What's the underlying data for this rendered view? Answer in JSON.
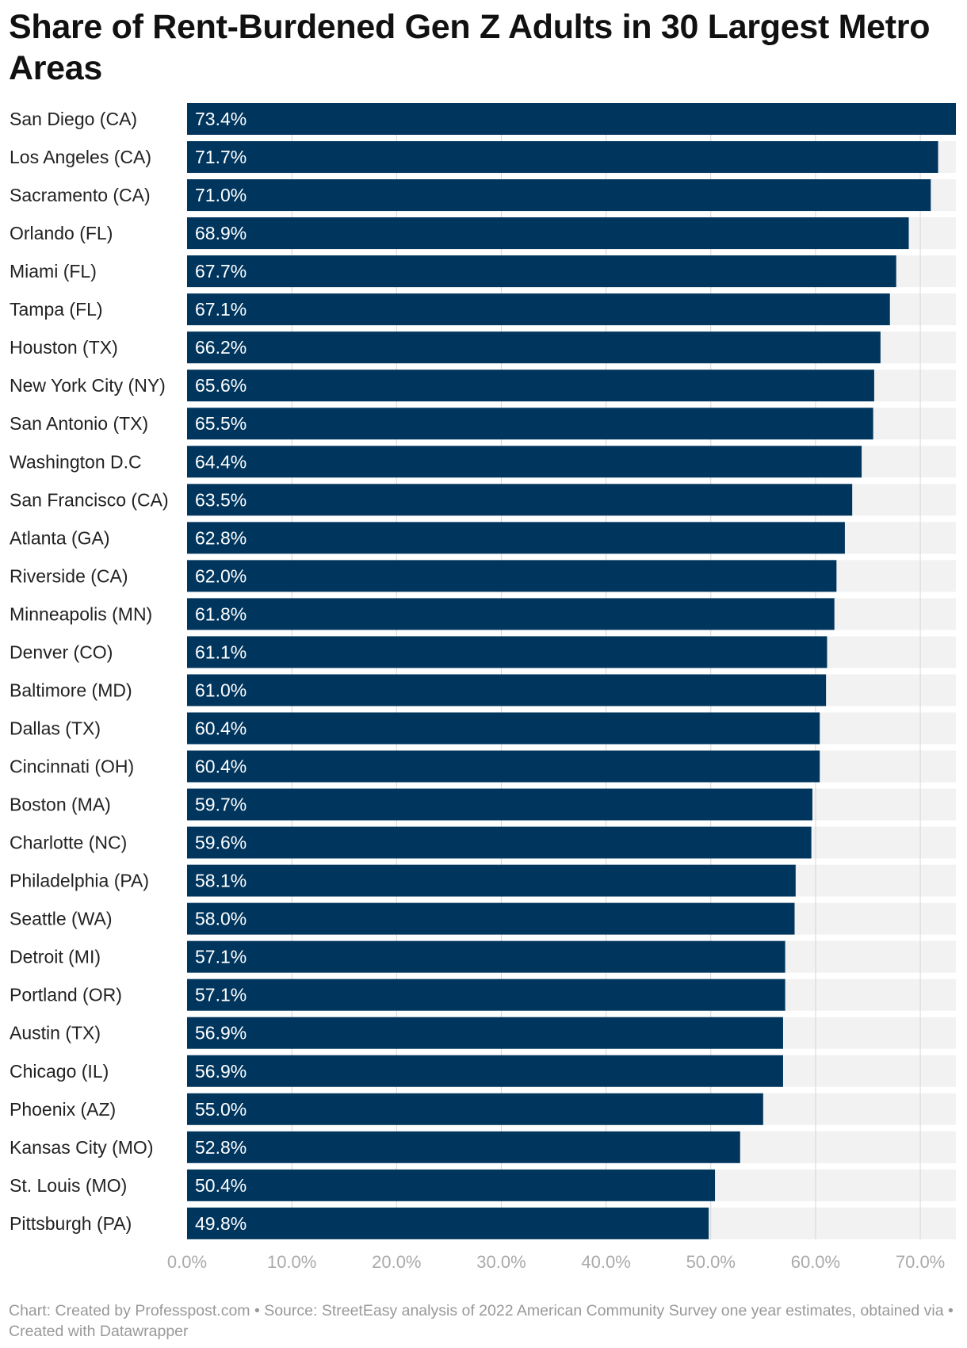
{
  "chart_data": {
    "type": "bar",
    "orientation": "horizontal",
    "title": "Share of Rent-Burdened Gen Z Adults in 30 Largest Metro Areas",
    "categories": [
      "San Diego (CA)",
      "Los Angeles (CA)",
      "Sacramento (CA)",
      "Orlando (FL)",
      "Miami (FL)",
      "Tampa (FL)",
      "Houston (TX)",
      "New York City (NY)",
      "San Antonio (TX)",
      "Washington D.C",
      "San Francisco (CA)",
      "Atlanta (GA)",
      "Riverside (CA)",
      "Minneapolis (MN)",
      "Denver (CO)",
      "Baltimore (MD)",
      "Dallas (TX)",
      "Cincinnati (OH)",
      "Boston (MA)",
      "Charlotte (NC)",
      "Philadelphia (PA)",
      "Seattle (WA)",
      "Detroit (MI)",
      "Portland (OR)",
      "Austin (TX)",
      "Chicago (IL)",
      "Phoenix (AZ)",
      "Kansas City (MO)",
      "St. Louis (MO)",
      "Pittsburgh (PA)"
    ],
    "values": [
      73.4,
      71.7,
      71.0,
      68.9,
      67.7,
      67.1,
      66.2,
      65.6,
      65.5,
      64.4,
      63.5,
      62.8,
      62.0,
      61.8,
      61.1,
      61.0,
      60.4,
      60.4,
      59.7,
      59.6,
      58.1,
      58.0,
      57.1,
      57.1,
      56.9,
      56.9,
      55.0,
      52.8,
      50.4,
      49.8
    ],
    "value_labels": [
      "73.4%",
      "71.7%",
      "71.0%",
      "68.9%",
      "67.7%",
      "67.1%",
      "66.2%",
      "65.6%",
      "65.5%",
      "64.4%",
      "63.5%",
      "62.8%",
      "62.0%",
      "61.8%",
      "61.1%",
      "61.0%",
      "60.4%",
      "60.4%",
      "59.7%",
      "59.6%",
      "58.1%",
      "58.0%",
      "57.1%",
      "57.1%",
      "56.9%",
      "56.9%",
      "55.0%",
      "52.8%",
      "50.4%",
      "49.8%"
    ],
    "xlim": [
      0,
      73.4
    ],
    "xticks": [
      0,
      10,
      20,
      30,
      40,
      50,
      60,
      70
    ],
    "xtick_labels": [
      "0.0%",
      "10.0%",
      "20.0%",
      "30.0%",
      "40.0%",
      "50.0%",
      "60.0%",
      "70.0%"
    ],
    "xlabel": "",
    "ylabel": "",
    "grid": true,
    "colors": {
      "bar": "#00365e",
      "track": "#f2f2f2",
      "grid": "#d6d6d6",
      "value_text": "#ffffff",
      "tick_text": "#aaaaaa"
    }
  },
  "footer": {
    "text": "Chart: Created by Professpost.com  • Source: StreetEasy analysis of 2022 American Community Survey one year estimates, obtained via • Created with Datawrapper"
  }
}
